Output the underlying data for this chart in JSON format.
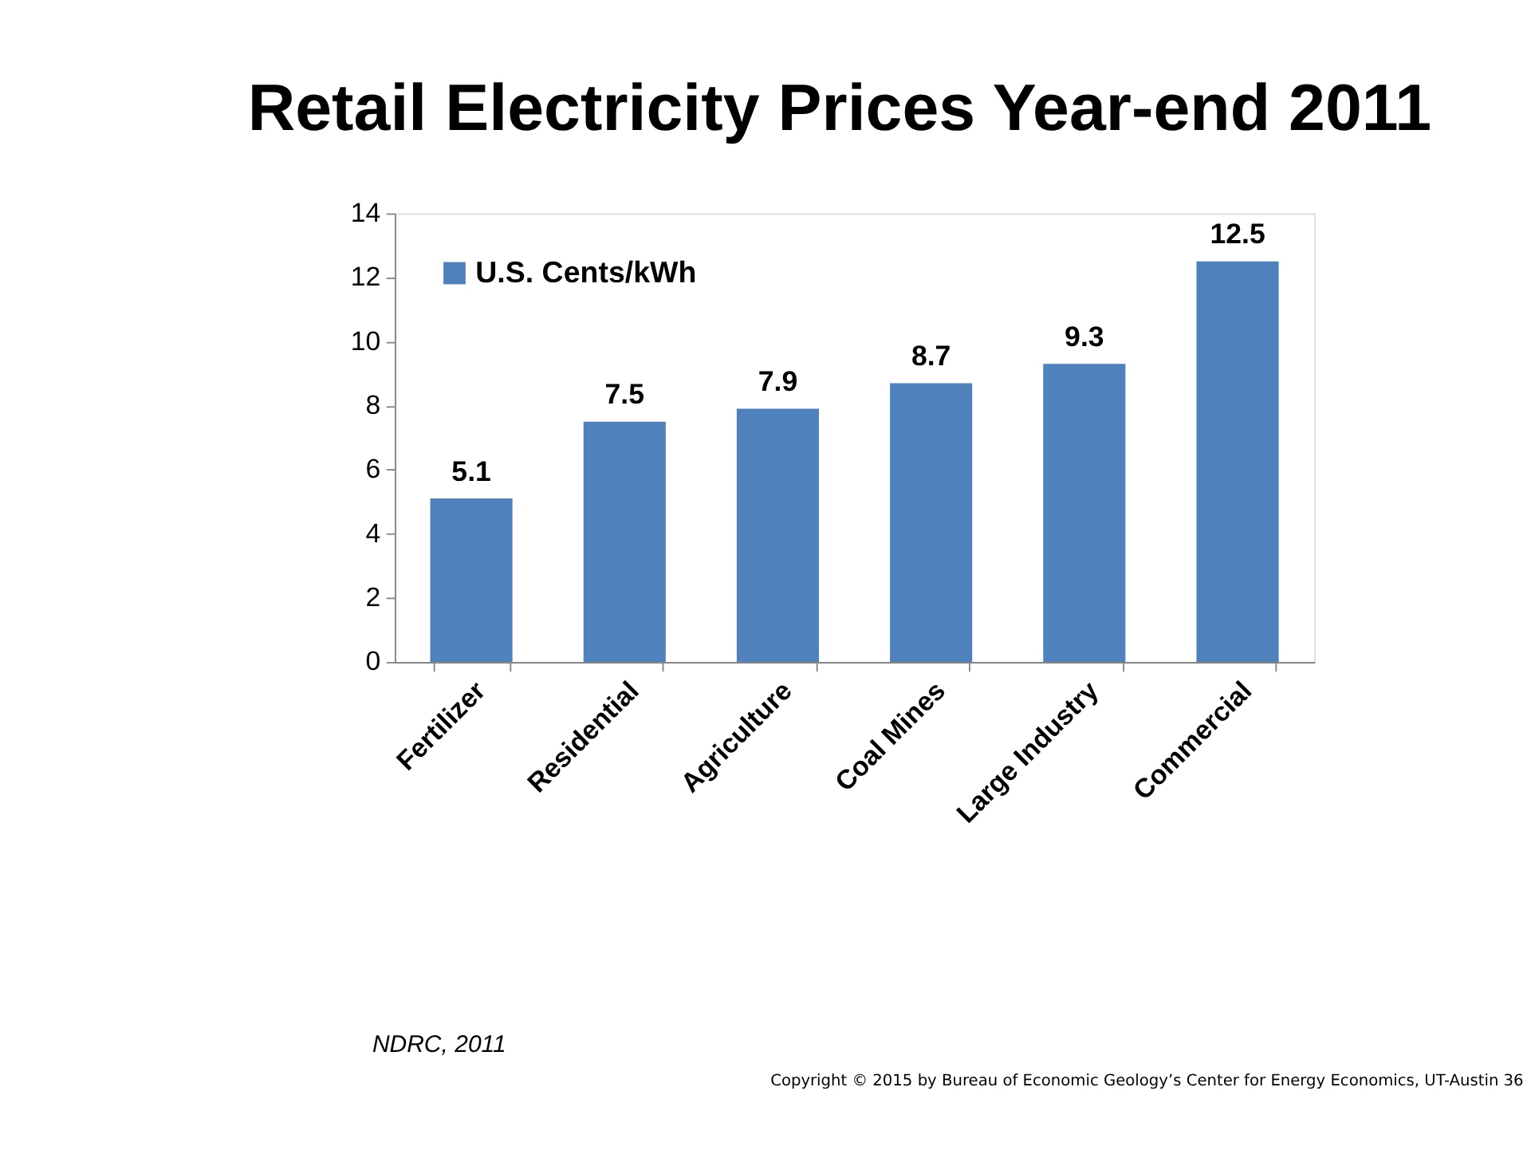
{
  "chart_data": {
    "type": "bar",
    "title": "Retail Electricity Prices Year-end 2011",
    "categories": [
      "Fertilizer",
      "Residential",
      "Agriculture",
      "Coal Mines",
      "Large Industry",
      "Commercial"
    ],
    "series": [
      {
        "name": "U.S. Cents/kWh",
        "color": "#4f81bd",
        "values": [
          5.1,
          7.5,
          7.9,
          8.7,
          9.3,
          12.5
        ]
      }
    ],
    "ylim": [
      0,
      14
    ],
    "yticks": [
      0,
      2,
      4,
      6,
      8,
      10,
      12,
      14
    ],
    "grid": false,
    "legend": "top left",
    "data_labels": true,
    "annotations": [
      "NDRC, 2011",
      "Copyright © 2015 by Bureau of Economic Geology’s Center for Energy Economics, UT-Austin 36"
    ]
  }
}
